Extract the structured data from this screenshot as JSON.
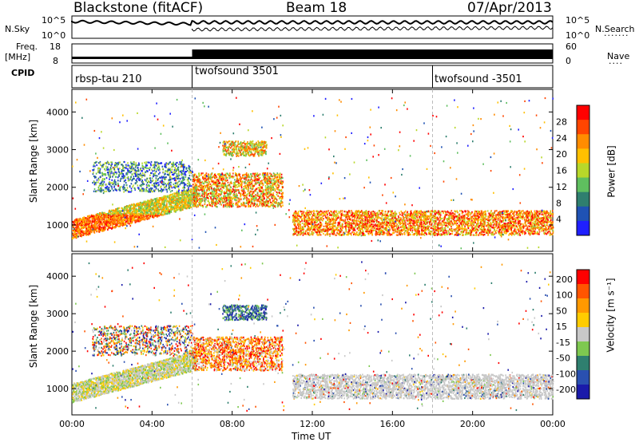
{
  "header": {
    "station": "Blackstone (fitACF)",
    "beam": "Beam 18",
    "date": "07/Apr/2013"
  },
  "status_panels": {
    "nsky_label": "N.Sky",
    "nsky_ticks": [
      "10^5",
      "10^0"
    ],
    "nsearch_label": "N.Search",
    "nsearch_ticks": [
      "10^5",
      "10^0"
    ],
    "freq_label_1": "Freq.",
    "freq_label_2": "[MHz]",
    "freq_ticks": [
      "18",
      "8"
    ],
    "nave_label": "Nave",
    "nave_ticks": [
      "60",
      "0"
    ],
    "cpid_label": "CPID",
    "cpid_segments": [
      "rbsp-tau 210",
      "twofsound 3501",
      "twofsound -3501"
    ]
  },
  "chart_data": [
    {
      "type": "heatmap",
      "panel": "power",
      "ylabel": "Slant Range [km]",
      "xlabel": "Time UT",
      "x_ticks": [
        "00:00",
        "04:00",
        "08:00",
        "12:00",
        "16:00",
        "20:00",
        "00:00"
      ],
      "y_ticks": [
        "1000",
        "2000",
        "3000",
        "4000"
      ],
      "xlim_hours": [
        0,
        24
      ],
      "ylim_km": [
        300,
        4600
      ],
      "colorbar_label": "Power [dB]",
      "colorbar_ticks": [
        "4",
        "8",
        "12",
        "16",
        "20",
        "24",
        "28"
      ],
      "colors": [
        "#1f1fff",
        "#1f52b4",
        "#2f7f6f",
        "#5fbf5f",
        "#b8d82a",
        "#ffc000",
        "#ff8c00",
        "#ff4500",
        "#ff0000"
      ]
    },
    {
      "type": "heatmap",
      "panel": "velocity",
      "ylabel": "Slant Range [km]",
      "xlabel": "Time UT",
      "x_ticks": [
        "00:00",
        "04:00",
        "08:00",
        "12:00",
        "16:00",
        "20:00",
        "00:00"
      ],
      "y_ticks": [
        "1000",
        "2000",
        "3000",
        "4000"
      ],
      "xlim_hours": [
        0,
        24
      ],
      "ylim_km": [
        300,
        4600
      ],
      "colorbar_label": "Velocity [m s⁻¹]",
      "colorbar_ticks": [
        "200",
        "100",
        "50",
        "15",
        "-15",
        "-50",
        "-100",
        "-200"
      ],
      "colors": [
        "#1a1aaa",
        "#2a50b0",
        "#2f7f6f",
        "#7ec850",
        "#c8c8c8",
        "#ffcc00",
        "#ff9900",
        "#ff5500",
        "#ff0000"
      ]
    }
  ],
  "x_axis_title": "Time UT"
}
